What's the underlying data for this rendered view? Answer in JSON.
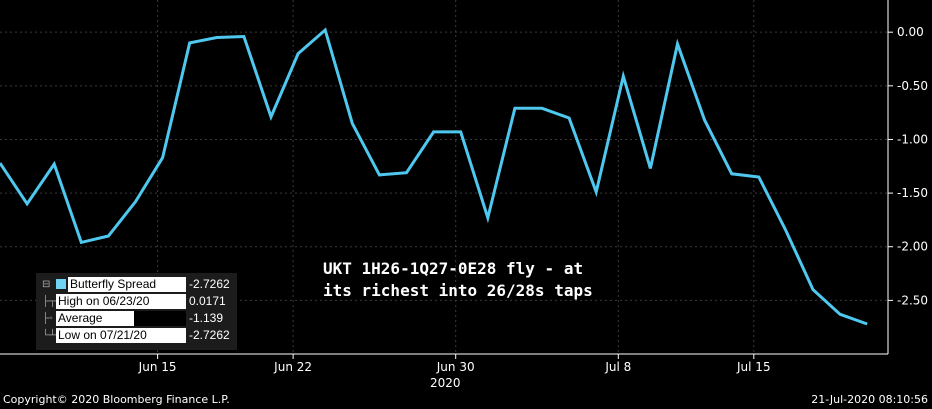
{
  "chart_data": {
    "type": "line",
    "series": [
      {
        "color": "#4fc8f0",
        "values": [
          -1.22,
          -1.6,
          -1.23,
          -1.96,
          -1.9,
          -1.58,
          -1.17,
          -0.1,
          -0.05,
          -0.04,
          -0.79,
          -0.2,
          0.02,
          -0.85,
          -1.33,
          -1.31,
          -0.93,
          -0.93,
          -1.73,
          -0.71,
          -0.71,
          -0.8,
          -1.49,
          -0.41,
          -1.27,
          -0.11,
          -0.82,
          -1.32,
          -1.35,
          -1.85,
          -2.4,
          -2.63,
          -2.72
        ]
      }
    ],
    "x_ticks": [
      "Jun 15",
      "Jun 22",
      "Jun 30",
      "Jul 8",
      "Jul 15"
    ],
    "x_year": "2020",
    "y_ticks": [
      "0.00",
      "-0.50",
      "-1.00",
      "-1.50",
      "-2.00",
      "-2.50"
    ],
    "ylim": [
      -3.0,
      0.3
    ],
    "grid": true
  },
  "annotation": {
    "line1": "UKT 1H26-1Q27-0E28 fly - at",
    "line2": "its richest into 26/28s taps"
  },
  "legend": {
    "rows": [
      {
        "label": "Butterfly Spread",
        "value": "-2.7262"
      },
      {
        "label": "High on 06/23/20",
        "value": "0.0171"
      },
      {
        "label": "Average",
        "value": "-1.139"
      },
      {
        "label": "Low on 07/21/20",
        "value": "-2.7262"
      }
    ]
  },
  "footer": {
    "copyright": "Copyright© 2020 Bloomberg Finance L.P.",
    "timestamp": "21-Jul-2020 08:10:56"
  }
}
